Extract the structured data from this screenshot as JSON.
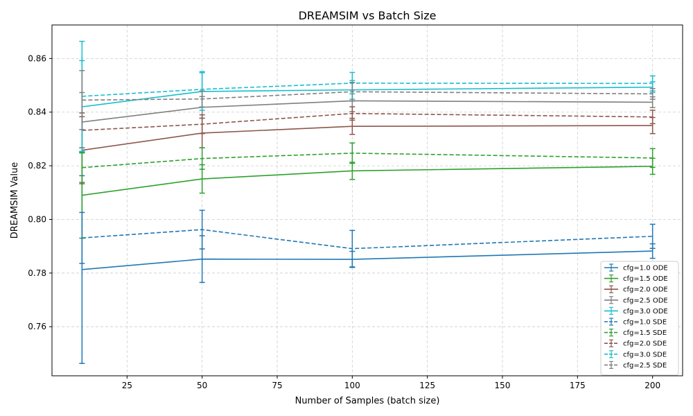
{
  "chart_data": {
    "type": "line",
    "title": "DREAMSIM vs Batch Size",
    "xlabel": "Number of Samples (batch size)",
    "ylabel": "DREAMSIM Value",
    "x": [
      10,
      50,
      100,
      200
    ],
    "xlim": [
      0,
      210
    ],
    "ylim": [
      0.7417,
      0.8725
    ],
    "xticks": [
      25,
      50,
      75,
      100,
      125,
      150,
      175,
      200
    ],
    "yticks": [
      0.76,
      0.78,
      0.8,
      0.82,
      0.84,
      0.86
    ],
    "ytick_labels": [
      "0.76",
      "0.78",
      "0.80",
      "0.82",
      "0.84",
      "0.86"
    ],
    "grid": true,
    "legend_position": "lower-right",
    "series": [
      {
        "name": "cfg=1.0 ODE",
        "color": "#1f77b4",
        "dash": "solid",
        "values": [
          0.7813,
          0.7852,
          0.7851,
          0.7882
        ],
        "errors": [
          0.035,
          0.0087,
          0.003,
          0.0027
        ]
      },
      {
        "name": "cfg=1.5 ODE",
        "color": "#2ca02c",
        "dash": "solid",
        "values": [
          0.809,
          0.8151,
          0.8181,
          0.8198
        ],
        "errors": [
          0.016,
          0.0053,
          0.0032,
          0.003
        ]
      },
      {
        "name": "cfg=2.0 ODE",
        "color": "#8c564b",
        "dash": "solid",
        "values": [
          0.8258,
          0.8322,
          0.8347,
          0.835
        ],
        "errors": [
          0.0125,
          0.0055,
          0.003,
          0.003
        ]
      },
      {
        "name": "cfg=2.5 ODE",
        "color": "#7f7f7f",
        "dash": "solid",
        "values": [
          0.8363,
          0.8418,
          0.8442,
          0.8437
        ],
        "errors": [
          0.011,
          0.004,
          0.004,
          0.002
        ]
      },
      {
        "name": "cfg=3.0 ODE",
        "color": "#17becf",
        "dash": "solid",
        "values": [
          0.842,
          0.8477,
          0.8483,
          0.8493
        ],
        "errors": [
          0.0172,
          0.007,
          0.0035,
          0.002
        ]
      },
      {
        "name": "cfg=1.0 SDE",
        "color": "#1f77b4",
        "dash": "dashed",
        "values": [
          0.7931,
          0.7962,
          0.7891,
          0.7937
        ],
        "errors": [
          0.0095,
          0.0072,
          0.0068,
          0.0045
        ]
      },
      {
        "name": "cfg=1.5 SDE",
        "color": "#2ca02c",
        "dash": "dashed",
        "values": [
          0.8193,
          0.8227,
          0.8247,
          0.8229
        ],
        "errors": [
          0.0055,
          0.004,
          0.0038,
          0.0035
        ]
      },
      {
        "name": "cfg=2.0 SDE",
        "color": "#8c564b",
        "dash": "dashed",
        "values": [
          0.8332,
          0.8355,
          0.8395,
          0.8382
        ],
        "errors": [
          0.0065,
          0.0035,
          0.0025,
          0.0025
        ]
      },
      {
        "name": "cfg=3.0 SDE",
        "color": "#17becf",
        "dash": "dashed",
        "values": [
          0.8459,
          0.8485,
          0.8508,
          0.8507
        ],
        "errors": [
          0.0205,
          0.0066,
          0.004,
          0.0028
        ]
      },
      {
        "name": "cfg=2.5 SDE",
        "color": "#7f7f7f",
        "dash": "dashed",
        "values": [
          0.8445,
          0.8449,
          0.8476,
          0.8468
        ],
        "errors": [
          0.011,
          0.003,
          0.0035,
          0.002
        ]
      }
    ]
  }
}
